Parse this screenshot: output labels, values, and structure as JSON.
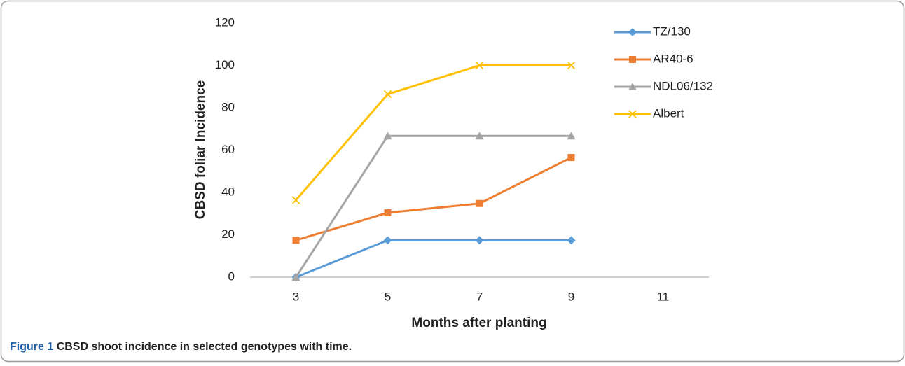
{
  "chart_data": {
    "type": "line",
    "x_label": "Months after planting",
    "y_label": "CBSD foliar Incidence",
    "x": [
      3,
      5,
      7,
      9
    ],
    "xlim": [
      2,
      12
    ],
    "xticks": [
      3,
      5,
      7,
      9,
      11
    ],
    "ylim": [
      0,
      120
    ],
    "yticks": [
      0,
      20,
      40,
      60,
      80,
      100,
      120
    ],
    "grid": false,
    "legend": "right",
    "series": [
      {
        "name": "TZ/130",
        "color": "#5b9bd5",
        "marker": "diamond",
        "values": [
          0,
          17.4,
          17.4,
          17.4
        ]
      },
      {
        "name": "AR40-6",
        "color": "#ed7d31",
        "marker": "square",
        "values": [
          17.4,
          30.4,
          34.8,
          56.5
        ]
      },
      {
        "name": "NDL06/132",
        "color": "#a5a5a5",
        "marker": "triangle",
        "values": [
          0,
          66.7,
          66.7,
          66.7
        ]
      },
      {
        "name": "Albert",
        "color": "#ffc000",
        "marker": "x",
        "values": [
          36.4,
          86.4,
          100,
          100
        ]
      }
    ]
  },
  "caption_label": "Figure 1",
  "caption": "CBSD shoot incidence in selected genotypes with time."
}
